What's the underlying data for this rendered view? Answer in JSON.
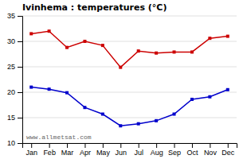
{
  "chart_data": {
    "type": "line",
    "title": "Ivinhema : temperatures (°C)",
    "categories": [
      "Jan",
      "Feb",
      "Mar",
      "Apr",
      "May",
      "Jun",
      "Jul",
      "Aug",
      "Sep",
      "Oct",
      "Nov",
      "Dec"
    ],
    "series": [
      {
        "color": "#cc0000",
        "marker": "square",
        "line_style": "solid",
        "values": [
          31.5,
          32.0,
          28.8,
          30.0,
          29.2,
          24.9,
          28.1,
          27.7,
          27.9,
          27.9,
          30.6,
          31.0
        ]
      },
      {
        "color": "#0000cc",
        "marker": "square",
        "line_style": "solid",
        "values": [
          21.0,
          20.6,
          19.9,
          17.0,
          15.7,
          13.4,
          13.8,
          14.4,
          15.7,
          18.6,
          19.1,
          20.5
        ]
      }
    ],
    "ylim": [
      10,
      35
    ],
    "yticks": [
      10,
      15,
      20,
      25,
      30,
      35
    ],
    "grid": true,
    "annotation": "www.allmetsat.com"
  }
}
